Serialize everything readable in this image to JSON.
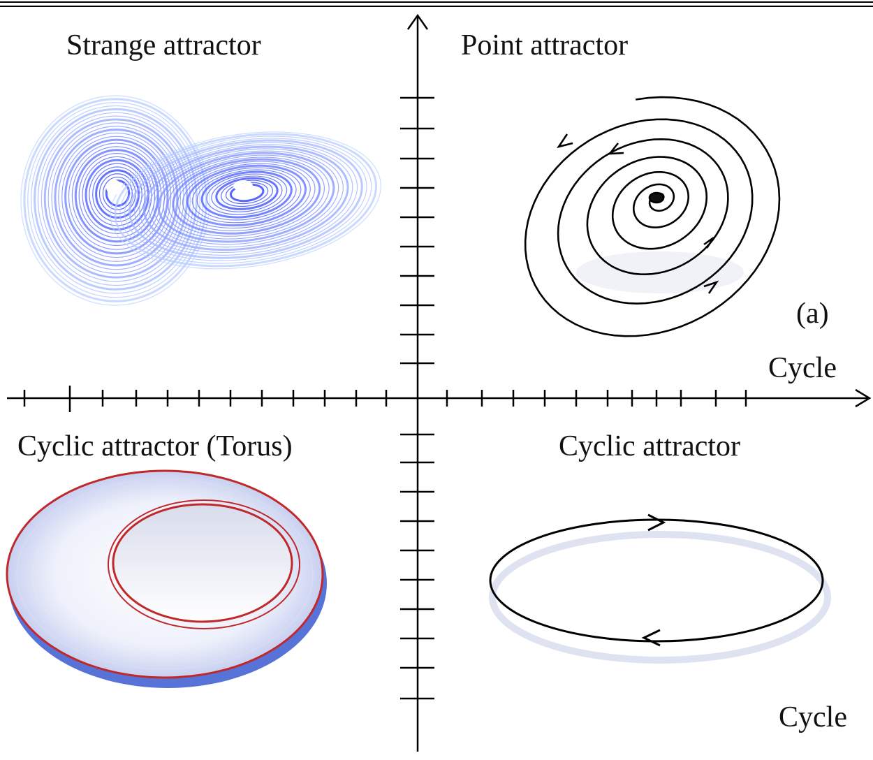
{
  "quadrants": [
    {
      "title": "Strange attractor"
    },
    {
      "title": "Point attractor",
      "annotation": "(a)"
    },
    {
      "title": "Cyclic attractor (Torus)"
    },
    {
      "title": "Cyclic attractor"
    }
  ],
  "axes": {
    "horizontal_label": "Cycle",
    "corner_label": "Cycle"
  }
}
